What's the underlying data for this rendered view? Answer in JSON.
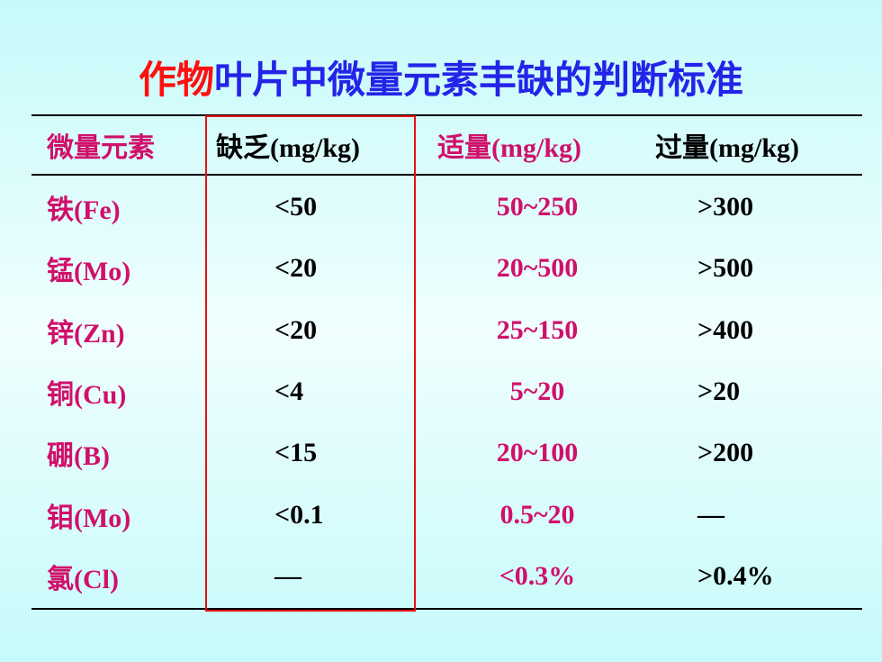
{
  "header": {
    "title_red": "作物",
    "title_blue": "叶片中微量元素丰缺的判断标准"
  },
  "table": {
    "columns": [
      "微量元素",
      "缺乏(mg/kg)",
      "适量(mg/kg)",
      "过量(mg/kg)"
    ],
    "rows": [
      [
        "铁(Fe)",
        "<50",
        "50~250",
        ">300"
      ],
      [
        "锰(Mo)",
        "<20",
        "20~500",
        ">500"
      ],
      [
        "锌(Zn)",
        "<20",
        "25~150",
        ">400"
      ],
      [
        "铜(Cu)",
        "<4",
        "5~20",
        ">20"
      ],
      [
        "硼(B)",
        "<15",
        "20~100",
        ">200"
      ],
      [
        "钼(Mo)",
        "<0.1",
        "0.5~20",
        "—"
      ],
      [
        "氯(Cl)",
        "—",
        "<0.3%",
        ">0.4%"
      ]
    ]
  }
}
